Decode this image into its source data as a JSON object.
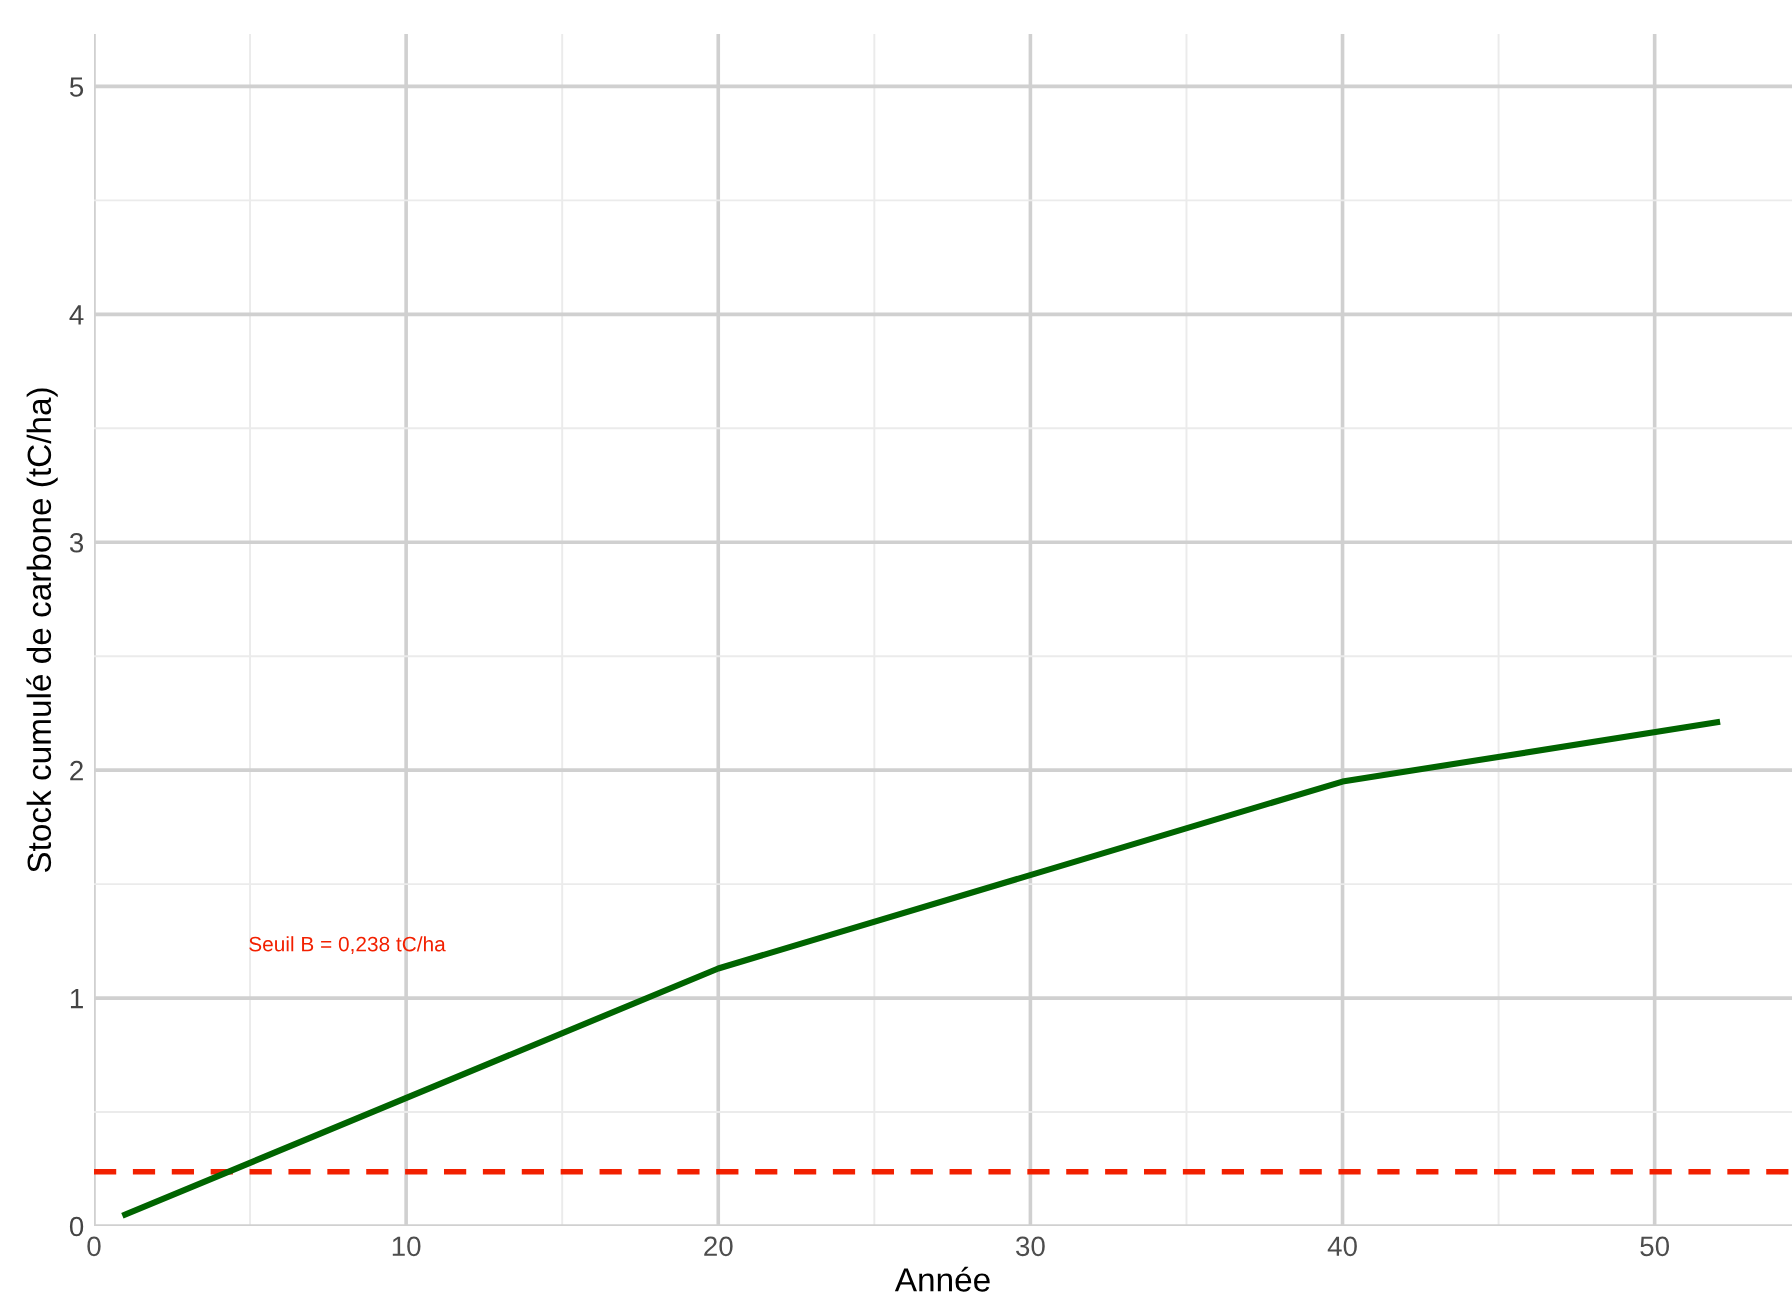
{
  "chart_data": {
    "type": "line",
    "xlabel": "Année",
    "ylabel": "Stock cumulé de carbone (tC/ha)",
    "x": [
      1,
      20,
      40,
      52
    ],
    "series": [
      {
        "color": "#006400",
        "values": [
          0.05,
          1.13,
          1.95,
          2.21
        ]
      }
    ],
    "xlim": [
      0,
      54.4
    ],
    "ylim": [
      0,
      5.23
    ],
    "xticks": [
      0,
      10,
      20,
      30,
      40,
      50
    ],
    "yticks": [
      0,
      1,
      2,
      3,
      4,
      5
    ],
    "ref_lines": [
      {
        "axis": "y",
        "value": 0.238,
        "color": "#f22000",
        "line_style": "dashed"
      }
    ],
    "annotations": [
      "Seuil B = 0,238 tC/ha"
    ],
    "grid": true,
    "marker": "none",
    "line_style": "solid"
  }
}
